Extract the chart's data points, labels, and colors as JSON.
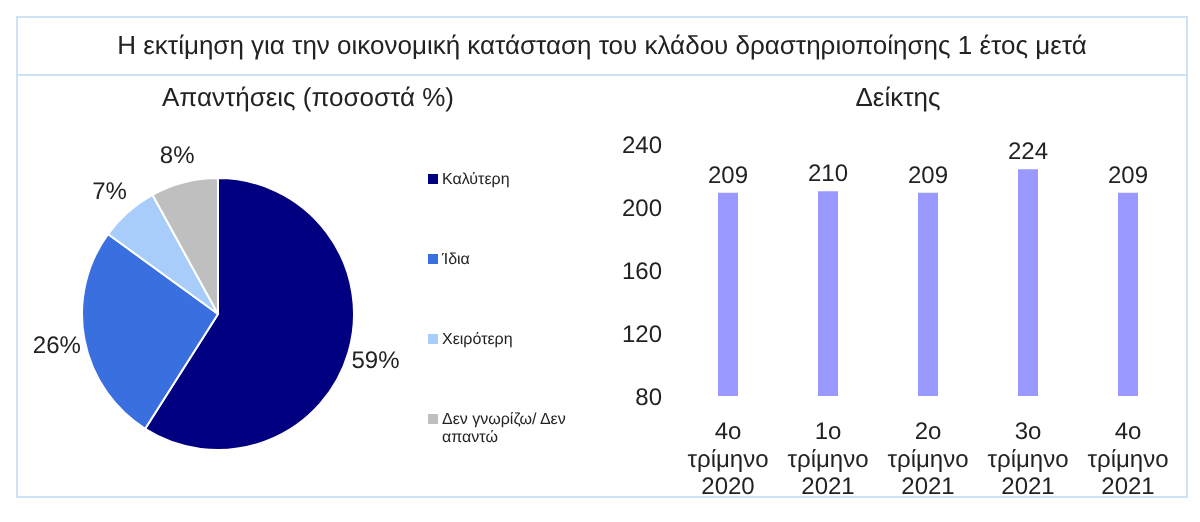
{
  "chart_data": [
    {
      "type": "pie",
      "title": "Η εκτίμηση για την οικονομική κατάσταση του κλάδου δραστηριοποίησης 1 έτος μετά",
      "subtitle": "Απαντήσεις (ποσοστά %)",
      "categories": [
        "Καλύτερη",
        "Ίδια",
        "Χειρότερη",
        "Δεν γνωρίζω/ Δεν απαντώ"
      ],
      "values": [
        59,
        26,
        7,
        8
      ],
      "colors": [
        "#000080",
        "#3a6fe0",
        "#a8cdfa",
        "#bfbfbf"
      ],
      "value_labels": [
        "59%",
        "26%",
        "7%",
        "8%"
      ],
      "legend": "right"
    },
    {
      "type": "bar",
      "title": "Δείκτης",
      "categories": [
        "4ο τρίμηνο 2020",
        "1ο τρίμηνο 2021",
        "2ο τρίμηνο 2021",
        "3ο τρίμηνο 2021",
        "4ο τρίμηνο 2021"
      ],
      "values": [
        209,
        210,
        209,
        224,
        209
      ],
      "color": "#9999ff",
      "ylim": [
        80,
        240
      ],
      "yticks": [
        80,
        120,
        160,
        200,
        240
      ],
      "grid": false,
      "data_labels": true
    }
  ]
}
